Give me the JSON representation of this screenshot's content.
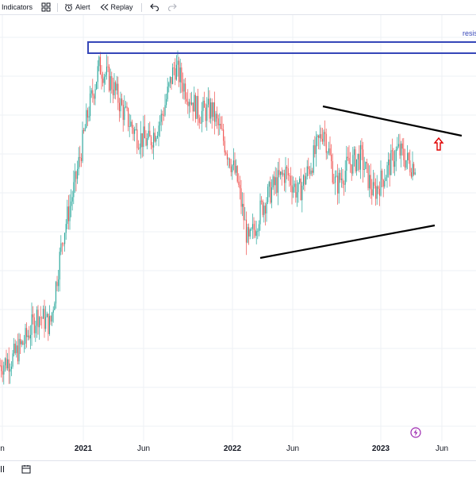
{
  "toolbar": {
    "indicators_label": "Indicators",
    "alert_label": "Alert",
    "replay_label": "Replay"
  },
  "annotation": {
    "resistance_label": "resis"
  },
  "colors": {
    "up_candle": "#26a69a",
    "down_candle": "#ef5350",
    "resistance_box": "#3546b8",
    "trendline": "#000000",
    "arrow": "#e00000",
    "grid": "#eef0f4"
  },
  "chart_data": {
    "type": "candlestick",
    "x_axis_labels": [
      "n",
      "2021",
      "Jun",
      "2022",
      "Jun",
      "2023",
      "Jun"
    ],
    "bold_year_labels": [
      "2021",
      "2022",
      "2023"
    ],
    "price_path": [
      [
        "2020-07",
        0.13
      ],
      [
        "2020-08",
        0.15
      ],
      [
        "2020-09",
        0.2
      ],
      [
        "2020-10",
        0.27
      ],
      [
        "2020-11",
        0.24
      ],
      [
        "2020-12",
        0.48
      ],
      [
        "2021-01",
        0.63
      ],
      [
        "2021-02",
        0.82
      ],
      [
        "2021-03",
        0.95
      ],
      [
        "2021-04",
        0.9
      ],
      [
        "2021-05",
        0.82
      ],
      [
        "2021-06",
        0.76
      ],
      [
        "2021-07",
        0.74
      ],
      [
        "2021-08",
        0.81
      ],
      [
        "2021-09",
        0.95
      ],
      [
        "2021-10",
        0.88
      ],
      [
        "2021-11",
        0.82
      ],
      [
        "2021-12",
        0.83
      ],
      [
        "2022-01",
        0.74
      ],
      [
        "2022-02",
        0.64
      ],
      [
        "2022-03",
        0.46
      ],
      [
        "2022-04",
        0.56
      ],
      [
        "2022-05",
        0.62
      ],
      [
        "2022-06",
        0.66
      ],
      [
        "2022-07",
        0.6
      ],
      [
        "2022-08",
        0.68
      ],
      [
        "2022-09",
        0.78
      ],
      [
        "2022-10",
        0.62
      ],
      [
        "2022-11",
        0.68
      ],
      [
        "2022-12",
        0.7
      ],
      [
        "2023-01",
        0.6
      ],
      [
        "2023-02",
        0.66
      ],
      [
        "2023-03",
        0.72
      ],
      [
        "2023-04",
        0.68
      ]
    ],
    "annotations": [
      {
        "type": "resistance_zone",
        "label": "resis"
      },
      {
        "type": "descending_trendline"
      },
      {
        "type": "ascending_trendline"
      },
      {
        "type": "breakout_arrow",
        "direction": "up"
      }
    ]
  }
}
